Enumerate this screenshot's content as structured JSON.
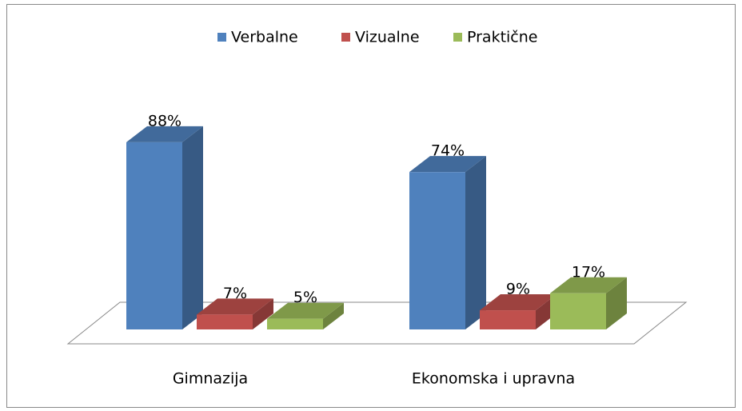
{
  "chart_data": {
    "type": "bar3d",
    "categories": [
      "Gimnazija",
      "Ekonomska i upravna"
    ],
    "series": [
      {
        "name": "Verbalne",
        "color": "#4f81bd",
        "values": [
          88,
          74
        ],
        "value_labels": [
          "88%",
          "74%"
        ]
      },
      {
        "name": "Vizualne",
        "color": "#c0504d",
        "values": [
          7,
          9
        ],
        "value_labels": [
          "7%",
          "9%"
        ]
      },
      {
        "name": "Praktične",
        "color": "#9bbb59",
        "values": [
          5,
          17
        ],
        "value_labels": [
          "5%",
          "17%"
        ]
      }
    ],
    "legend": "top"
  }
}
